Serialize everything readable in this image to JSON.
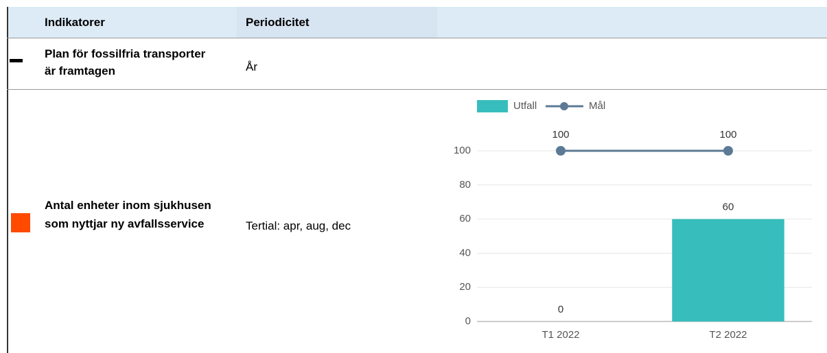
{
  "table": {
    "header": [
      "Indikatorer",
      "Periodicitet"
    ],
    "rows": [
      [
        "Plan för fossilfria transporter är framtagen",
        "År"
      ],
      [
        "Antal enheter inom sjukhusen som nyttjar ny avfallsservice",
        "Tertial: apr, aug, dec"
      ]
    ]
  },
  "chart_data": {
    "type": "bar",
    "categories": [
      "T1 2022",
      "T2 2022"
    ],
    "series": [
      {
        "name": "Utfall",
        "color": "#38bdbd",
        "values": [
          0,
          60
        ]
      },
      {
        "name": "Mål",
        "color": "#5c7a95",
        "values": [
          100,
          100
        ],
        "type": "line"
      }
    ],
    "ylim": [
      0,
      100
    ],
    "yticks": [
      0,
      20,
      40,
      60,
      80,
      100
    ],
    "grid": true,
    "legend": "top"
  }
}
